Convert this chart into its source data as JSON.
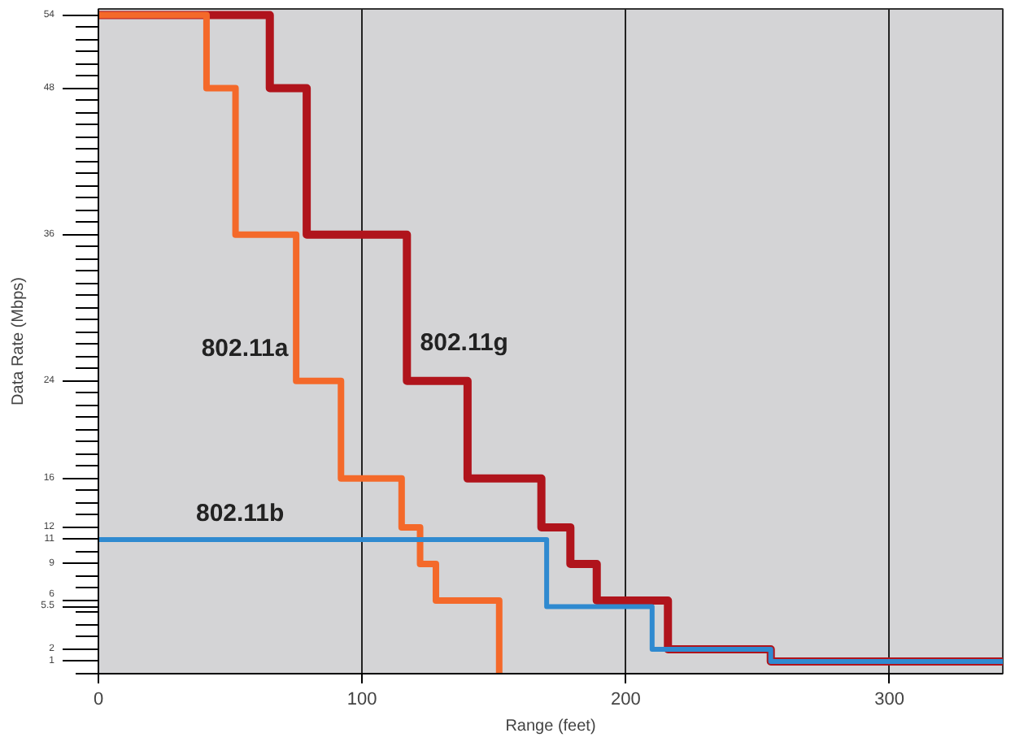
{
  "chart_data": {
    "type": "step",
    "xlabel": "Range (feet)",
    "ylabel": "Data Rate (Mbps)",
    "xlim": [
      0,
      343
    ],
    "xticks": [
      0,
      100,
      200,
      300
    ],
    "ylim": [
      0,
      54.5
    ],
    "yticks": [
      1,
      2,
      5.5,
      6,
      9,
      11,
      12,
      16,
      24,
      36,
      48,
      54
    ],
    "grid": "x",
    "series": [
      {
        "name": "802.11g",
        "color": "#b0141c",
        "x": [
          0,
          65,
          79,
          117,
          140,
          168,
          179,
          189,
          216,
          255,
          343
        ],
        "values": [
          54,
          48,
          36,
          24,
          16,
          12,
          9,
          6,
          2,
          1,
          1
        ]
      },
      {
        "name": "802.11a",
        "color": "#f4692a",
        "x": [
          0,
          41,
          52,
          75,
          92,
          115,
          122,
          128,
          152
        ],
        "values": [
          54,
          48,
          36,
          24,
          16,
          12,
          9,
          6,
          0
        ]
      },
      {
        "name": "802.11b",
        "color": "#2f8ad0",
        "x": [
          0,
          170,
          210,
          255,
          343
        ],
        "values": [
          11,
          5.5,
          2,
          1,
          1
        ]
      }
    ]
  }
}
